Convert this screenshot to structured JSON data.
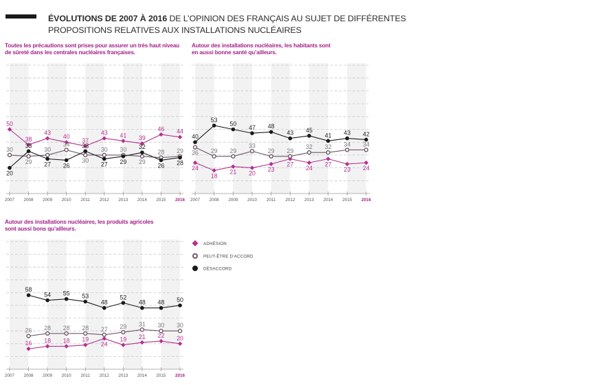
{
  "header": {
    "title_bold": "ÉVOLUTIONS DE 2007 À 2016",
    "title_rest": " DE L’OPINION DES FRANÇAIS AU SUJET DE DIFFÉRENTES",
    "title_line2": "PROPOSITIONS RELATIVES AUX INSTALLATIONS NUCLÉAIRES"
  },
  "colors": {
    "adhesion": "#b4318f",
    "peut_etre": "#6e5868",
    "desaccord": "#1a1a1a",
    "accent": "#a3228a",
    "band": "#f2f2f2",
    "grid": "#c9c9c9"
  },
  "legend": {
    "placement": "right of third chart",
    "items": [
      {
        "key": "adhesion",
        "label": "ADHÉSION"
      },
      {
        "key": "peut_etre",
        "label": "PEUT-ÊTRE D’ACCORD"
      },
      {
        "key": "desaccord",
        "label": "DÉSACCORD"
      }
    ]
  },
  "chart_data": [
    {
      "type": "line",
      "title": [
        "Toutes les précautions sont prises pour assurer un très haut niveau",
        "de sûreté dans les centrales nucléaires françaises."
      ],
      "categories": [
        "2007",
        "2008",
        "2009",
        "2010",
        "2011",
        "2012",
        "2013",
        "2014",
        "2015",
        "2016"
      ],
      "highlight_category": "2016",
      "ylim": [
        0,
        100
      ],
      "grid": true,
      "series": [
        {
          "key": "adhesion",
          "name": "Adhésion",
          "values": [
            50,
            38,
            43,
            40,
            37,
            43,
            41,
            39,
            46,
            44
          ]
        },
        {
          "key": "peut_etre",
          "name": "Peut-être d’accord",
          "values": [
            30,
            29,
            30,
            34,
            30,
            30,
            30,
            29,
            28,
            29
          ]
        },
        {
          "key": "desaccord",
          "name": "Désaccord",
          "values": [
            20,
            33,
            27,
            26,
            33,
            27,
            29,
            32,
            26,
            28
          ]
        }
      ]
    },
    {
      "type": "line",
      "title": [
        "Autour des installations nucléaires, les habitants sont",
        "en aussi bonne santé qu’ailleurs."
      ],
      "categories": [
        "2007",
        "2008",
        "2009",
        "2010",
        "2011",
        "2012",
        "2013",
        "2014",
        "2015",
        "2016"
      ],
      "highlight_category": "2016",
      "ylim": [
        0,
        100
      ],
      "grid": true,
      "series": [
        {
          "key": "adhesion",
          "name": "Adhésion",
          "values": [
            24,
            18,
            21,
            20,
            23,
            27,
            24,
            27,
            23,
            24
          ]
        },
        {
          "key": "peut_etre",
          "name": "Peut-être d’accord",
          "values": [
            36,
            29,
            29,
            33,
            29,
            29,
            32,
            32,
            34,
            34
          ]
        },
        {
          "key": "desaccord",
          "name": "Désaccord",
          "values": [
            40,
            53,
            50,
            47,
            48,
            43,
            45,
            41,
            43,
            42
          ]
        }
      ]
    },
    {
      "type": "line",
      "title": [
        "Autour des installations nucléaires, les produits agricoles",
        "sont aussi bons qu’ailleurs."
      ],
      "categories": [
        "2007",
        "2008",
        "2009",
        "2010",
        "2011",
        "2012",
        "2013",
        "2014",
        "2015",
        "2016"
      ],
      "highlight_category": "2016",
      "ylim": [
        0,
        100
      ],
      "grid": true,
      "series": [
        {
          "key": "adhesion",
          "name": "Adhésion",
          "values": [
            null,
            16,
            18,
            18,
            19,
            24,
            19,
            21,
            22,
            20
          ]
        },
        {
          "key": "peut_etre",
          "name": "Peut-être d’accord",
          "values": [
            null,
            26,
            28,
            28,
            28,
            27,
            29,
            31,
            30,
            30
          ]
        },
        {
          "key": "desaccord",
          "name": "Désaccord",
          "values": [
            null,
            58,
            54,
            55,
            53,
            48,
            52,
            48,
            48,
            50
          ]
        }
      ]
    }
  ]
}
